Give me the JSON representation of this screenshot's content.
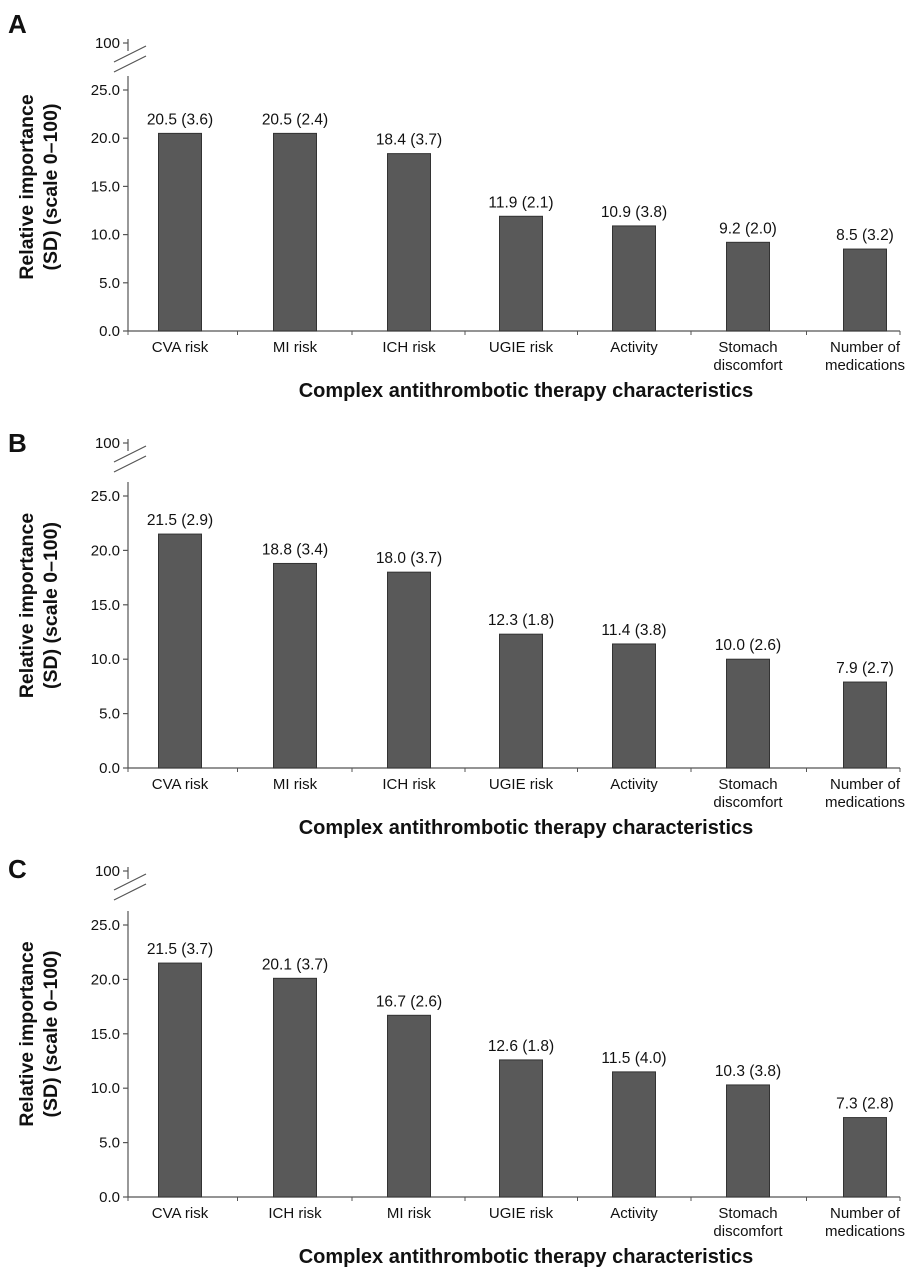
{
  "colors": {
    "bar": "#595959",
    "bar_edge": "#333333",
    "axis": "#555555",
    "text": "#111111"
  },
  "chart_data": [
    {
      "panel": "A",
      "type": "bar",
      "title": "",
      "xlabel": "Complex antithrombotic therapy characteristics",
      "ylabel_lines": [
        "Relative importance",
        "(SD) (scale 0–100)"
      ],
      "yticks": [
        "0.0",
        "5.0",
        "10.0",
        "15.0",
        "20.0",
        "25.0"
      ],
      "ytick_values": [
        0,
        5,
        10,
        15,
        20,
        25
      ],
      "ybreak_label": "100",
      "ylim": [
        0,
        25
      ],
      "axis_break": true,
      "grid": false,
      "categories": [
        [
          "CVA risk"
        ],
        [
          "MI risk"
        ],
        [
          "ICH risk"
        ],
        [
          "UGIE risk"
        ],
        [
          "Activity"
        ],
        [
          "Stomach",
          "discomfort"
        ],
        [
          "Number of",
          "medications"
        ]
      ],
      "values": [
        20.5,
        20.5,
        18.4,
        11.9,
        10.9,
        9.2,
        8.5
      ],
      "sd": [
        3.6,
        2.4,
        3.7,
        2.1,
        3.8,
        2.0,
        3.2
      ],
      "labels": [
        "20.5 (3.6)",
        "20.5 (2.4)",
        "18.4 (3.7)",
        "11.9 (2.1)",
        "10.9 (3.8)",
        "9.2 (2.0)",
        "8.5 (3.2)"
      ]
    },
    {
      "panel": "B",
      "type": "bar",
      "title": "",
      "xlabel": "Complex antithrombotic therapy characteristics",
      "ylabel_lines": [
        "Relative importance",
        "(SD) (scale 0–100)"
      ],
      "yticks": [
        "0.0",
        "5.0",
        "10.0",
        "15.0",
        "20.0",
        "25.0"
      ],
      "ytick_values": [
        0,
        5,
        10,
        15,
        20,
        25
      ],
      "ybreak_label": "100",
      "ylim": [
        0,
        25
      ],
      "axis_break": true,
      "grid": false,
      "categories": [
        [
          "CVA risk"
        ],
        [
          "MI risk"
        ],
        [
          "ICH risk"
        ],
        [
          "UGIE risk"
        ],
        [
          "Activity"
        ],
        [
          "Stomach",
          "discomfort"
        ],
        [
          "Number of",
          "medications"
        ]
      ],
      "values": [
        21.5,
        18.8,
        18.0,
        12.3,
        11.4,
        10.0,
        7.9
      ],
      "sd": [
        2.9,
        3.4,
        3.7,
        1.8,
        3.8,
        2.6,
        2.7
      ],
      "labels": [
        "21.5 (2.9)",
        "18.8 (3.4)",
        "18.0 (3.7)",
        "12.3 (1.8)",
        "11.4 (3.8)",
        "10.0 (2.6)",
        "7.9 (2.7)"
      ]
    },
    {
      "panel": "C",
      "type": "bar",
      "title": "",
      "xlabel": "Complex antithrombotic therapy characteristics",
      "ylabel_lines": [
        "Relative importance",
        "(SD) (scale 0–100)"
      ],
      "yticks": [
        "0.0",
        "5.0",
        "10.0",
        "15.0",
        "20.0",
        "25.0"
      ],
      "ytick_values": [
        0,
        5,
        10,
        15,
        20,
        25
      ],
      "ybreak_label": "100",
      "ylim": [
        0,
        25
      ],
      "axis_break": true,
      "grid": false,
      "categories": [
        [
          "CVA risk"
        ],
        [
          "ICH risk"
        ],
        [
          "MI risk"
        ],
        [
          "UGIE risk"
        ],
        [
          "Activity"
        ],
        [
          "Stomach",
          "discomfort"
        ],
        [
          "Number of",
          "medications"
        ]
      ],
      "values": [
        21.5,
        20.1,
        16.7,
        12.6,
        11.5,
        10.3,
        7.3
      ],
      "sd": [
        3.7,
        3.7,
        2.6,
        1.8,
        4.0,
        3.8,
        2.8
      ],
      "labels": [
        "21.5 (3.7)",
        "20.1 (3.7)",
        "16.7 (2.6)",
        "12.6 (1.8)",
        "11.5 (4.0)",
        "10.3 (3.8)",
        "7.3 (2.8)"
      ]
    }
  ]
}
